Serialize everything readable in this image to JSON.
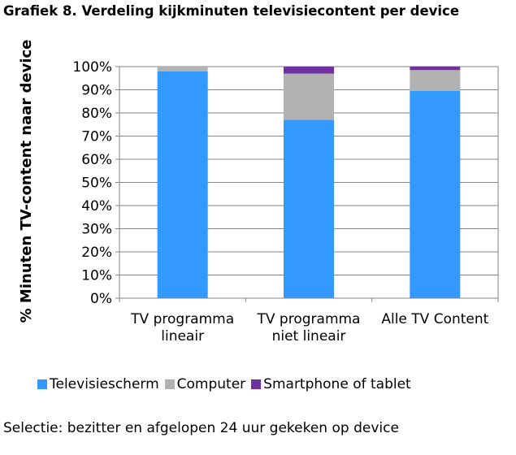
{
  "title": "Grafiek 8. Verdeling kijkminuten televisiecontent per device",
  "footnote": "Selectie: bezitter en afgelopen 24 uur gekeken op device",
  "chart_data": {
    "type": "bar",
    "stacked": true,
    "title": "Grafiek 8. Verdeling kijkminuten televisiecontent per device",
    "ylabel": "% Minuten TV-content naar device",
    "xlabel": "",
    "ylim": [
      0,
      100
    ],
    "yticks": [
      "0%",
      "10%",
      "20%",
      "30%",
      "40%",
      "50%",
      "60%",
      "70%",
      "80%",
      "90%",
      "100%"
    ],
    "categories": [
      "TV programma lineair",
      "TV programma niet lineair",
      "Alle TV Content"
    ],
    "series": [
      {
        "name": "Televisiescherm",
        "color": "#3399ff",
        "values": [
          98,
          77,
          89.5
        ]
      },
      {
        "name": "Computer",
        "color": "#b2b2b2",
        "values": [
          2,
          20,
          9
        ]
      },
      {
        "name": "Smartphone of tablet",
        "color": "#7030a0",
        "values": [
          0,
          3,
          1.5
        ]
      }
    ],
    "grid": true,
    "legend_position": "bottom"
  }
}
